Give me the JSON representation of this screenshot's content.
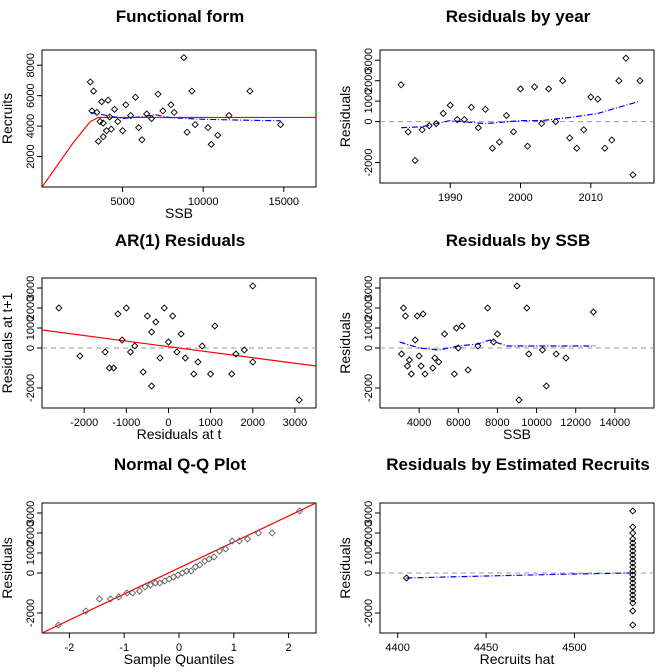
{
  "chart_data": [
    {
      "id": "p1",
      "type": "scatter",
      "title": "Functional form",
      "xlabel": "SSB",
      "ylabel": "Recruits",
      "xlim": [
        0,
        17000
      ],
      "ylim": [
        0,
        9000
      ],
      "xticks": [
        5000,
        10000,
        15000
      ],
      "yticks": [
        2000,
        4000,
        6000,
        8000
      ],
      "ytick_labels": [
        "2000",
        "4000",
        "6000",
        "8000"
      ],
      "colors": {
        "fit": "#ff0000",
        "smooth": "#0000ff",
        "points": "#000000"
      },
      "points": [
        [
          3000,
          6900
        ],
        [
          3200,
          6300
        ],
        [
          3100,
          5000
        ],
        [
          3400,
          4900
        ],
        [
          3500,
          3000
        ],
        [
          3600,
          4300
        ],
        [
          3800,
          4200
        ],
        [
          3700,
          5600
        ],
        [
          3800,
          3300
        ],
        [
          4000,
          3700
        ],
        [
          4100,
          5700
        ],
        [
          4200,
          4600
        ],
        [
          4300,
          3800
        ],
        [
          4500,
          5100
        ],
        [
          4700,
          4300
        ],
        [
          5000,
          3700
        ],
        [
          5200,
          5400
        ],
        [
          5500,
          4700
        ],
        [
          5800,
          5900
        ],
        [
          6000,
          3900
        ],
        [
          6200,
          3100
        ],
        [
          6500,
          4800
        ],
        [
          6800,
          4500
        ],
        [
          7200,
          6100
        ],
        [
          7500,
          5000
        ],
        [
          8000,
          5400
        ],
        [
          8200,
          4900
        ],
        [
          8800,
          8500
        ],
        [
          9000,
          3600
        ],
        [
          9300,
          6300
        ],
        [
          9500,
          4100
        ],
        [
          10300,
          3900
        ],
        [
          10500,
          2800
        ],
        [
          10900,
          3400
        ],
        [
          11600,
          4700
        ],
        [
          12900,
          6300
        ],
        [
          14800,
          4100
        ]
      ],
      "fit": [
        [
          0,
          0
        ],
        [
          1000,
          1500
        ],
        [
          2000,
          3000
        ],
        [
          3000,
          4300
        ],
        [
          3500,
          4570
        ],
        [
          17000,
          4570
        ]
      ],
      "smooth": [
        [
          3000,
          4900
        ],
        [
          4000,
          4700
        ],
        [
          5000,
          4500
        ],
        [
          6000,
          4600
        ],
        [
          7000,
          4750
        ],
        [
          8000,
          4550
        ],
        [
          10000,
          4450
        ],
        [
          12000,
          4400
        ],
        [
          14800,
          4350
        ]
      ]
    },
    {
      "id": "p2",
      "type": "scatter",
      "title": "Residuals by year",
      "xlabel": "",
      "ylabel": "Residuals",
      "xlim": [
        1980,
        2019
      ],
      "ylim": [
        -3000,
        3500
      ],
      "xticks": [
        1990,
        2000,
        2010
      ],
      "yticks": [
        -2000,
        0,
        1000,
        2000,
        3000
      ],
      "ytick_labels": [
        "-2000",
        "0",
        "1000",
        "2000",
        "3000"
      ],
      "colors": {
        "smooth": "#0000ff",
        "ref": "#999999"
      },
      "points": [
        [
          1983,
          1800
        ],
        [
          1984,
          -500
        ],
        [
          1985,
          -1900
        ],
        [
          1986,
          -400
        ],
        [
          1987,
          -200
        ],
        [
          1988,
          -100
        ],
        [
          1989,
          400
        ],
        [
          1990,
          800
        ],
        [
          1991,
          100
        ],
        [
          1992,
          100
        ],
        [
          1993,
          700
        ],
        [
          1994,
          -300
        ],
        [
          1995,
          600
        ],
        [
          1996,
          -1300
        ],
        [
          1997,
          -1000
        ],
        [
          1998,
          300
        ],
        [
          1999,
          -500
        ],
        [
          2000,
          1600
        ],
        [
          2001,
          -1200
        ],
        [
          2002,
          1700
        ],
        [
          2003,
          -100
        ],
        [
          2004,
          1600
        ],
        [
          2005,
          0
        ],
        [
          2006,
          2000
        ],
        [
          2007,
          -800
        ],
        [
          2008,
          -1300
        ],
        [
          2009,
          -400
        ],
        [
          2010,
          1200
        ],
        [
          2011,
          1100
        ],
        [
          2012,
          -1300
        ],
        [
          2013,
          -900
        ],
        [
          2014,
          2000
        ],
        [
          2015,
          3100
        ],
        [
          2016,
          -2600
        ],
        [
          2017,
          2000
        ]
      ],
      "smooth": [
        [
          1983,
          -300
        ],
        [
          1986,
          -250
        ],
        [
          1990,
          50
        ],
        [
          1995,
          -100
        ],
        [
          2000,
          50
        ],
        [
          2003,
          50
        ],
        [
          2007,
          200
        ],
        [
          2011,
          400
        ],
        [
          2014,
          700
        ],
        [
          2017,
          1000
        ]
      ]
    },
    {
      "id": "p3",
      "type": "scatter",
      "title": "AR(1) Residuals",
      "xlabel": "Residuals at t",
      "ylabel": "Residuals at t+1",
      "xlim": [
        -3000,
        3500
      ],
      "ylim": [
        -3000,
        3500
      ],
      "xticks": [
        -2000,
        -1000,
        0,
        1000,
        2000,
        3000
      ],
      "yticks": [
        -2000,
        0,
        1000,
        2000,
        3000
      ],
      "ytick_labels": [
        "-2000",
        "0",
        "1000",
        "2000",
        "3000"
      ],
      "colors": {
        "fit": "#ff0000",
        "ref": "#999999"
      },
      "points": [
        [
          -2600,
          2000
        ],
        [
          -2100,
          -400
        ],
        [
          -1500,
          -200
        ],
        [
          -1400,
          -1000
        ],
        [
          -1300,
          -1000
        ],
        [
          -1200,
          1700
        ],
        [
          -1100,
          400
        ],
        [
          -1000,
          2000
        ],
        [
          -900,
          -200
        ],
        [
          -800,
          100
        ],
        [
          -600,
          -1200
        ],
        [
          -500,
          1600
        ],
        [
          -400,
          -1900
        ],
        [
          -400,
          800
        ],
        [
          -300,
          1300
        ],
        [
          -200,
          -500
        ],
        [
          -100,
          2000
        ],
        [
          0,
          300
        ],
        [
          100,
          1600
        ],
        [
          200,
          -200
        ],
        [
          300,
          700
        ],
        [
          400,
          -500
        ],
        [
          600,
          -1300
        ],
        [
          700,
          -700
        ],
        [
          800,
          100
        ],
        [
          1000,
          -1300
        ],
        [
          1100,
          1100
        ],
        [
          1500,
          -1300
        ],
        [
          1600,
          -300
        ],
        [
          1800,
          -100
        ],
        [
          2000,
          3100
        ],
        [
          2000,
          -700
        ],
        [
          3100,
          -2600
        ]
      ],
      "fit": [
        [
          -3000,
          900
        ],
        [
          3500,
          -900
        ]
      ]
    },
    {
      "id": "p4",
      "type": "scatter",
      "title": "Residuals by SSB",
      "xlabel": "SSB",
      "ylabel": "Residuals",
      "xlim": [
        2000,
        16000
      ],
      "ylim": [
        -3000,
        3500
      ],
      "xticks": [
        4000,
        6000,
        8000,
        10000,
        12000,
        14000
      ],
      "yticks": [
        -2000,
        0,
        1000,
        2000,
        3000
      ],
      "ytick_labels": [
        "-2000",
        "0",
        "1000",
        "2000",
        "3000"
      ],
      "colors": {
        "smooth": "#0000ff",
        "ref": "#999999"
      },
      "points": [
        [
          3100,
          -300
        ],
        [
          3200,
          2000
        ],
        [
          3300,
          1600
        ],
        [
          3400,
          -900
        ],
        [
          3500,
          -600
        ],
        [
          3600,
          -1300
        ],
        [
          3800,
          400
        ],
        [
          3900,
          1600
        ],
        [
          4000,
          -400
        ],
        [
          4100,
          -900
        ],
        [
          4200,
          1700
        ],
        [
          4300,
          -1300
        ],
        [
          4700,
          -1000
        ],
        [
          4800,
          -500
        ],
        [
          5000,
          -700
        ],
        [
          5300,
          700
        ],
        [
          5800,
          -1300
        ],
        [
          5900,
          1000
        ],
        [
          6000,
          0
        ],
        [
          6200,
          1100
        ],
        [
          6500,
          -1100
        ],
        [
          7000,
          100
        ],
        [
          7500,
          2000
        ],
        [
          7800,
          300
        ],
        [
          8000,
          700
        ],
        [
          9000,
          3100
        ],
        [
          9100,
          -2600
        ],
        [
          9500,
          2000
        ],
        [
          9600,
          -300
        ],
        [
          10300,
          -100
        ],
        [
          10500,
          -1900
        ],
        [
          11000,
          -300
        ],
        [
          11500,
          -500
        ],
        [
          12900,
          1800
        ]
      ],
      "smooth": [
        [
          3000,
          300
        ],
        [
          4000,
          0
        ],
        [
          5000,
          -100
        ],
        [
          6000,
          100
        ],
        [
          7000,
          200
        ],
        [
          7600,
          400
        ],
        [
          8500,
          100
        ],
        [
          9500,
          100
        ],
        [
          11000,
          100
        ],
        [
          13000,
          100
        ]
      ]
    },
    {
      "id": "p5",
      "type": "scatter",
      "title": "Normal Q-Q Plot",
      "xlabel": "Sample Quantiles",
      "ylabel": "Residuals",
      "xlim": [
        -2.5,
        2.5
      ],
      "ylim": [
        -3000,
        3500
      ],
      "xticks": [
        -2,
        -1,
        0,
        1,
        2
      ],
      "yticks": [
        -2000,
        0,
        1000,
        2000,
        3000
      ],
      "ytick_labels": [
        "-2000",
        "0",
        "1000",
        "2000",
        "3000"
      ],
      "colors": {
        "fit": "#ff0000",
        "points": "#666666"
      },
      "points": [
        [
          -2.2,
          -2600
        ],
        [
          -1.7,
          -1900
        ],
        [
          -1.45,
          -1300
        ],
        [
          -1.25,
          -1300
        ],
        [
          -1.1,
          -1200
        ],
        [
          -0.95,
          -1000
        ],
        [
          -0.85,
          -1000
        ],
        [
          -0.72,
          -900
        ],
        [
          -0.62,
          -700
        ],
        [
          -0.52,
          -600
        ],
        [
          -0.43,
          -500
        ],
        [
          -0.35,
          -500
        ],
        [
          -0.26,
          -400
        ],
        [
          -0.18,
          -300
        ],
        [
          -0.1,
          -200
        ],
        [
          -0.02,
          -100
        ],
        [
          0.06,
          0
        ],
        [
          0.14,
          100
        ],
        [
          0.22,
          100
        ],
        [
          0.3,
          300
        ],
        [
          0.38,
          400
        ],
        [
          0.47,
          600
        ],
        [
          0.55,
          700
        ],
        [
          0.64,
          800
        ],
        [
          0.74,
          1100
        ],
        [
          0.85,
          1200
        ],
        [
          0.97,
          1600
        ],
        [
          1.1,
          1600
        ],
        [
          1.25,
          1700
        ],
        [
          1.45,
          2000
        ],
        [
          1.7,
          2000
        ],
        [
          2.2,
          3100
        ]
      ],
      "fit": [
        [
          -2.5,
          -3000
        ],
        [
          2.5,
          3500
        ]
      ]
    },
    {
      "id": "p6",
      "type": "scatter",
      "title": "Residuals by Estimated Recruits",
      "xlabel": "Recruits hat",
      "ylabel": "Residuals",
      "xlim": [
        4390,
        4545
      ],
      "ylim": [
        -3000,
        3500
      ],
      "xticks": [
        4400,
        4450,
        4500
      ],
      "yticks": [
        -2000,
        0,
        1000,
        2000,
        3000
      ],
      "ytick_labels": [
        "-2000",
        "0",
        "1000",
        "2000",
        "3000"
      ],
      "colors": {
        "smooth": "#0000ff",
        "ref": "#999999"
      },
      "points": [
        [
          4405,
          -250
        ],
        [
          4533,
          3100
        ],
        [
          4533,
          2300
        ],
        [
          4533,
          2000
        ],
        [
          4533,
          1700
        ],
        [
          4533,
          1500
        ],
        [
          4533,
          1300
        ],
        [
          4533,
          1100
        ],
        [
          4533,
          900
        ],
        [
          4533,
          700
        ],
        [
          4533,
          500
        ],
        [
          4533,
          300
        ],
        [
          4533,
          100
        ],
        [
          4533,
          -100
        ],
        [
          4533,
          -300
        ],
        [
          4533,
          -500
        ],
        [
          4533,
          -700
        ],
        [
          4533,
          -900
        ],
        [
          4533,
          -1100
        ],
        [
          4533,
          -1300
        ],
        [
          4533,
          -1500
        ],
        [
          4533,
          -1900
        ],
        [
          4533,
          -2600
        ]
      ],
      "smooth": [
        [
          4405,
          -250
        ],
        [
          4450,
          -150
        ],
        [
          4500,
          -50
        ],
        [
          4533,
          0
        ]
      ]
    }
  ]
}
